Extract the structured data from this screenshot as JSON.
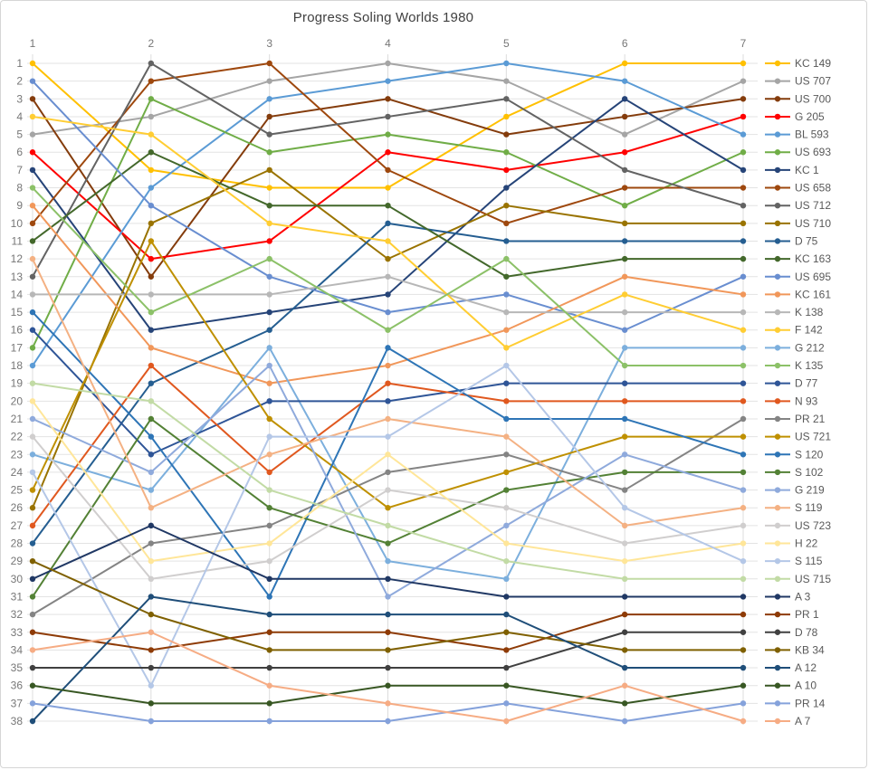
{
  "chart_data": {
    "type": "line",
    "subtype": "bump-rank-chart",
    "title": "Progress Soling Worlds 1980",
    "xlabel": "",
    "ylabel": "",
    "x": [
      1,
      2,
      3,
      4,
      5,
      6,
      7
    ],
    "x_tick_labels": [
      "1",
      "2",
      "3",
      "4",
      "5",
      "6",
      "7"
    ],
    "y_tick_labels": [
      "1",
      "2",
      "3",
      "4",
      "5",
      "6",
      "7",
      "8",
      "9",
      "10",
      "11",
      "12",
      "13",
      "14",
      "15",
      "16",
      "17",
      "18",
      "19",
      "20",
      "21",
      "22",
      "23",
      "24",
      "25",
      "26",
      "27",
      "28",
      "29",
      "30",
      "31",
      "32",
      "33",
      "34",
      "35",
      "36",
      "37",
      "38"
    ],
    "ylim": [
      1,
      38
    ],
    "y_inverted": true,
    "grid": "both",
    "legend_position": "right",
    "axis_text_color": "#767676",
    "title_color": "#404040",
    "legend_text_color": "#595959",
    "gridline_color_h": "#e3e3e3",
    "gridline_color_v": "#dcdcdc",
    "series": [
      {
        "name": "KC 149",
        "color": "#FFC000",
        "ranks": [
          1,
          7,
          8,
          8,
          4,
          1,
          1
        ]
      },
      {
        "name": "US 707",
        "color": "#A5A5A5",
        "ranks": [
          5,
          4,
          2,
          1,
          2,
          5,
          2
        ]
      },
      {
        "name": "US 700",
        "color": "#843C0C",
        "ranks": [
          3,
          13,
          4,
          3,
          5,
          4,
          3
        ]
      },
      {
        "name": "G 205",
        "color": "#FF0000",
        "ranks": [
          6,
          12,
          11,
          6,
          7,
          6,
          4
        ]
      },
      {
        "name": "BL 593",
        "color": "#5B9BD5",
        "ranks": [
          18,
          8,
          3,
          2,
          1,
          2,
          5
        ]
      },
      {
        "name": "US 693",
        "color": "#70AD47",
        "ranks": [
          17,
          3,
          6,
          5,
          6,
          9,
          6
        ]
      },
      {
        "name": "KC 1",
        "color": "#264478",
        "ranks": [
          7,
          16,
          15,
          14,
          8,
          3,
          7
        ]
      },
      {
        "name": "US 658",
        "color": "#9E480E",
        "ranks": [
          10,
          2,
          1,
          7,
          10,
          8,
          8
        ]
      },
      {
        "name": "US 712",
        "color": "#636363",
        "ranks": [
          13,
          1,
          5,
          4,
          3,
          7,
          9
        ]
      },
      {
        "name": "US 710",
        "color": "#997300",
        "ranks": [
          26,
          10,
          7,
          12,
          9,
          10,
          10
        ]
      },
      {
        "name": "D 75",
        "color": "#255E91",
        "ranks": [
          28,
          19,
          16,
          10,
          11,
          11,
          11
        ]
      },
      {
        "name": "KC 163",
        "color": "#43682B",
        "ranks": [
          11,
          6,
          9,
          9,
          13,
          12,
          12
        ]
      },
      {
        "name": "US 695",
        "color": "#698ED0",
        "ranks": [
          2,
          9,
          13,
          15,
          14,
          16,
          13
        ]
      },
      {
        "name": "KC 161",
        "color": "#F1975A",
        "ranks": [
          9,
          17,
          19,
          18,
          16,
          13,
          14
        ]
      },
      {
        "name": "K 138",
        "color": "#B7B7B7",
        "ranks": [
          14,
          14,
          14,
          13,
          15,
          15,
          15
        ]
      },
      {
        "name": "F 142",
        "color": "#FFCD33",
        "ranks": [
          4,
          5,
          10,
          11,
          17,
          14,
          16
        ]
      },
      {
        "name": "G 212",
        "color": "#7CAFDD",
        "ranks": [
          23,
          25,
          17,
          29,
          30,
          17,
          17
        ]
      },
      {
        "name": "K 135",
        "color": "#8CC168",
        "ranks": [
          8,
          15,
          12,
          16,
          12,
          18,
          18
        ]
      },
      {
        "name": "D 77",
        "color": "#2F5597",
        "ranks": [
          16,
          23,
          20,
          20,
          19,
          19,
          19
        ]
      },
      {
        "name": "N 93",
        "color": "#E0581F",
        "ranks": [
          27,
          18,
          24,
          19,
          20,
          20,
          20
        ]
      },
      {
        "name": "PR 21",
        "color": "#848484",
        "ranks": [
          32,
          28,
          27,
          24,
          23,
          25,
          21
        ]
      },
      {
        "name": "US 721",
        "color": "#BF9000",
        "ranks": [
          25,
          11,
          21,
          26,
          24,
          22,
          22
        ]
      },
      {
        "name": "S 120",
        "color": "#2E75B6",
        "ranks": [
          15,
          22,
          31,
          17,
          21,
          21,
          23
        ]
      },
      {
        "name": "S 102",
        "color": "#538135",
        "ranks": [
          31,
          21,
          26,
          28,
          25,
          24,
          24
        ]
      },
      {
        "name": "G 219",
        "color": "#8FAADC",
        "ranks": [
          21,
          24,
          18,
          31,
          27,
          23,
          25
        ]
      },
      {
        "name": "S 119",
        "color": "#F4B183",
        "ranks": [
          12,
          26,
          23,
          21,
          22,
          27,
          26
        ]
      },
      {
        "name": "US 723",
        "color": "#D0CECE",
        "ranks": [
          22,
          30,
          29,
          25,
          26,
          28,
          27
        ]
      },
      {
        "name": "H 22",
        "color": "#FFE699",
        "ranks": [
          20,
          29,
          28,
          23,
          28,
          29,
          28
        ]
      },
      {
        "name": "S 115",
        "color": "#B4C7E7",
        "ranks": [
          24,
          36,
          22,
          22,
          18,
          26,
          29
        ]
      },
      {
        "name": "US 715",
        "color": "#C2DBA5",
        "ranks": [
          19,
          20,
          25,
          27,
          29,
          30,
          30
        ]
      },
      {
        "name": "A 3",
        "color": "#203864",
        "ranks": [
          30,
          27,
          30,
          30,
          31,
          31,
          31
        ]
      },
      {
        "name": "PR 1",
        "color": "#8E3B06",
        "ranks": [
          33,
          34,
          33,
          33,
          34,
          32,
          32
        ]
      },
      {
        "name": "D 78",
        "color": "#404040",
        "ranks": [
          35,
          35,
          35,
          35,
          35,
          33,
          33
        ]
      },
      {
        "name": "KB 34",
        "color": "#7F6000",
        "ranks": [
          29,
          32,
          34,
          34,
          33,
          34,
          34
        ]
      },
      {
        "name": "A 12",
        "color": "#1F4E79",
        "ranks": [
          38,
          31,
          32,
          32,
          32,
          35,
          35
        ]
      },
      {
        "name": "A 10",
        "color": "#385723",
        "ranks": [
          36,
          37,
          37,
          36,
          36,
          37,
          36
        ]
      },
      {
        "name": "PR 14",
        "color": "#85A2DB",
        "ranks": [
          37,
          38,
          38,
          38,
          37,
          38,
          37
        ]
      },
      {
        "name": "A 7",
        "color": "#F6AC84",
        "ranks": [
          34,
          33,
          36,
          37,
          38,
          36,
          38
        ]
      }
    ]
  }
}
